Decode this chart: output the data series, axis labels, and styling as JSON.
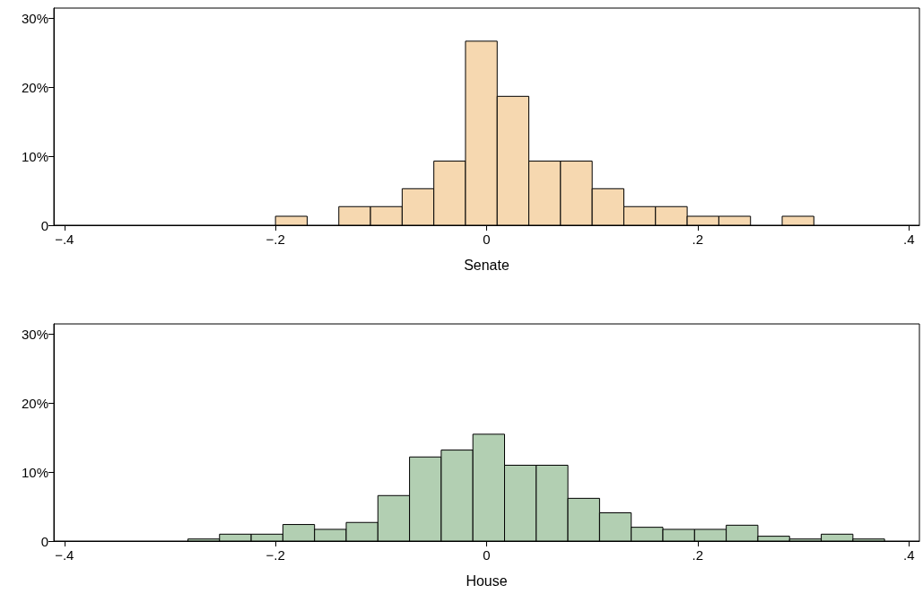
{
  "chart_data": [
    {
      "type": "histogram",
      "xlabel": "Senate",
      "color": "#f6d8b0",
      "bins": [
        -0.2,
        -0.17,
        -0.14,
        -0.11,
        -0.08,
        -0.05,
        -0.02,
        0.01,
        0.04,
        0.07,
        0.1,
        0.13,
        0.16,
        0.19,
        0.22,
        0.25,
        0.28,
        0.31
      ],
      "values": [
        1.3,
        0,
        2.7,
        2.7,
        5.3,
        9.3,
        26.7,
        18.7,
        9.3,
        9.3,
        5.3,
        2.7,
        2.7,
        1.3,
        1.3,
        0,
        1.3
      ],
      "xlim": [
        -0.41,
        0.41
      ],
      "xticks": [
        {
          "value": -0.4,
          "label": "−.4"
        },
        {
          "value": -0.2,
          "label": "−.2"
        },
        0,
        {
          "value": 0.2,
          "label": ".2"
        },
        {
          "value": 0.4,
          "label": ".4"
        }
      ],
      "ylim": [
        0,
        31.5
      ],
      "yticks": [
        0,
        {
          "value": 10,
          "label": "10%"
        },
        {
          "value": 20,
          "label": "20%"
        },
        {
          "value": 30,
          "label": "30%"
        }
      ]
    },
    {
      "type": "histogram",
      "xlabel": "House",
      "color": "#b2cfb2",
      "bins": [
        -0.283,
        -0.253,
        -0.223,
        -0.193,
        -0.163,
        -0.133,
        -0.103,
        -0.073,
        -0.043,
        -0.013,
        0.017,
        0.047,
        0.077,
        0.107,
        0.137,
        0.167,
        0.197,
        0.227,
        0.257,
        0.287,
        0.317,
        0.347,
        0.377
      ],
      "values": [
        0.3,
        1.0,
        1.0,
        2.4,
        1.7,
        2.7,
        6.6,
        12.2,
        13.2,
        15.5,
        11.0,
        11.0,
        6.2,
        4.1,
        2.0,
        1.7,
        1.7,
        2.3,
        0.7,
        0.3,
        1.0,
        0.3
      ],
      "xlim": [
        -0.41,
        0.41
      ],
      "xticks": [
        {
          "value": -0.4,
          "label": "−.4"
        },
        {
          "value": -0.2,
          "label": "−.2"
        },
        0,
        {
          "value": 0.2,
          "label": ".2"
        },
        {
          "value": 0.4,
          "label": ".4"
        }
      ],
      "ylim": [
        0,
        31.5
      ],
      "yticks": [
        0,
        {
          "value": 10,
          "label": "10%"
        },
        {
          "value": 20,
          "label": "20%"
        },
        {
          "value": 30,
          "label": "30%"
        }
      ]
    }
  ]
}
